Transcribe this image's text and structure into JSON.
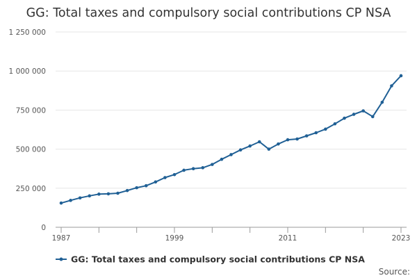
{
  "chart_data": {
    "type": "line",
    "title": "GG: Total taxes and compulsory social contributions CP NSA",
    "xlabel": "",
    "ylabel": "",
    "x": [
      1987,
      1988,
      1989,
      1990,
      1991,
      1992,
      1993,
      1994,
      1995,
      1996,
      1997,
      1998,
      1999,
      2000,
      2001,
      2002,
      2003,
      2004,
      2005,
      2006,
      2007,
      2008,
      2009,
      2010,
      2011,
      2012,
      2013,
      2014,
      2015,
      2016,
      2017,
      2018,
      2019,
      2020,
      2021,
      2022,
      2023
    ],
    "series": [
      {
        "name": "GG: Total taxes and compulsory social contributions CP NSA",
        "color": "#206095",
        "values": [
          155000,
          172000,
          188000,
          201000,
          212000,
          214000,
          218000,
          235000,
          253000,
          266000,
          290000,
          318000,
          337000,
          365000,
          375000,
          381000,
          402000,
          435000,
          465000,
          495000,
          520000,
          547000,
          500000,
          533000,
          560000,
          565000,
          585000,
          605000,
          628000,
          662000,
          698000,
          723000,
          745000,
          708000,
          800000,
          905000,
          970000
        ]
      }
    ],
    "ylim": [
      0,
      1250000
    ],
    "yticks": [
      0,
      250000,
      500000,
      750000,
      1000000,
      1250000
    ],
    "ytick_labels": [
      "0",
      "250 000",
      "500 000",
      "750 000",
      "1 000 000",
      "1 250 000"
    ],
    "xticks": [
      1987,
      1999,
      2011,
      2023
    ],
    "xtick_labels": [
      "1987",
      "1999",
      "2011",
      "2023"
    ],
    "grid": true,
    "legend_position": "bottom-left"
  },
  "source_label": "Source:"
}
